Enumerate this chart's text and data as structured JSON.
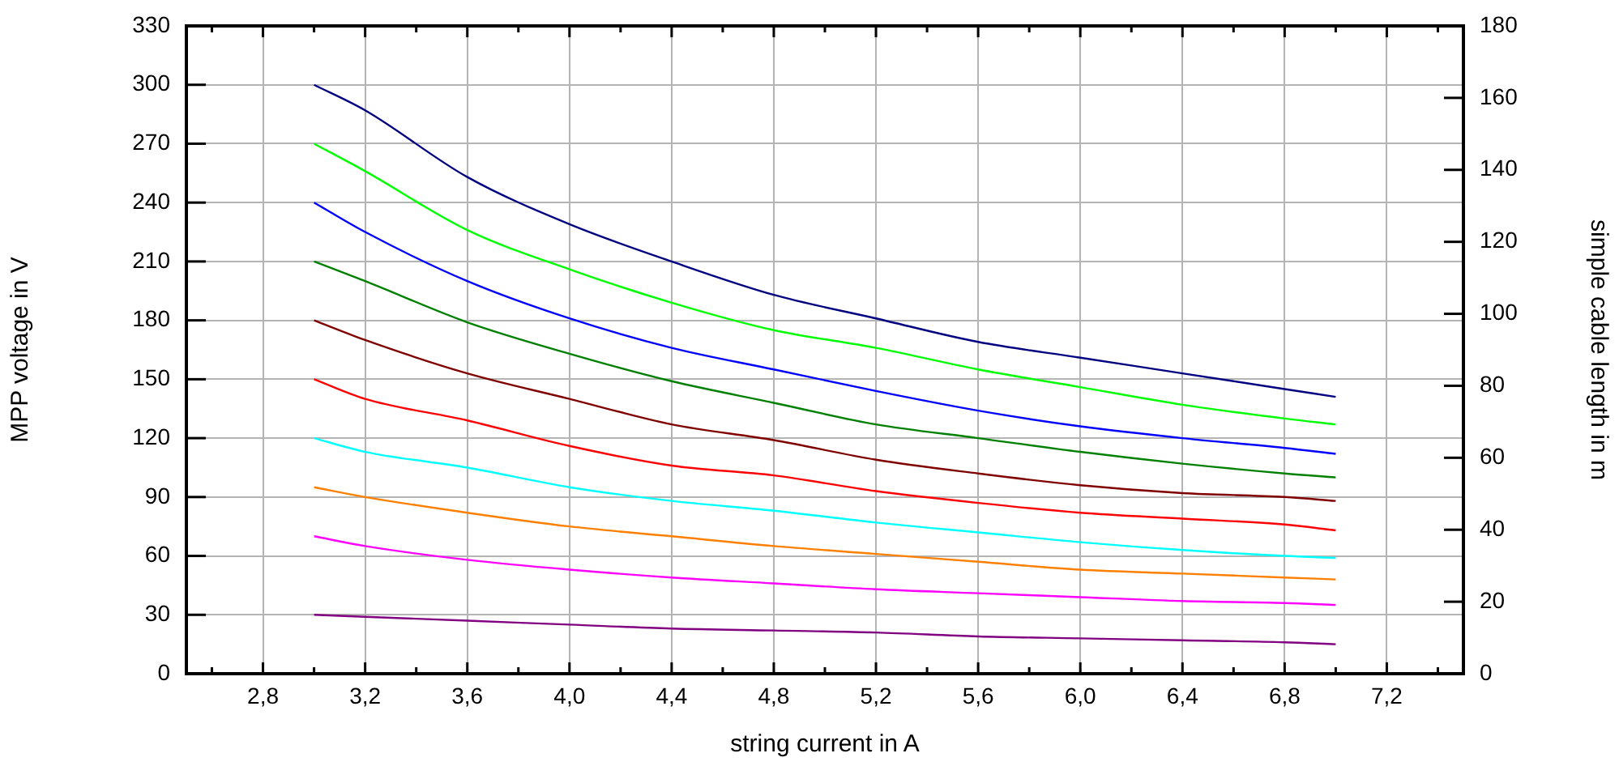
{
  "chart_data": {
    "type": "line",
    "xlabel": "string current in A",
    "ylabel": "MPP voltage in V",
    "y2label": "simple cable length in m",
    "x": [
      3.0,
      3.2,
      3.6,
      4.0,
      4.4,
      4.8,
      5.2,
      5.6,
      6.0,
      6.4,
      6.8,
      7.0
    ],
    "series": [
      {
        "color": "#000080",
        "values": [
          300,
          287,
          253,
          229,
          210,
          193,
          181,
          169,
          161,
          153,
          145,
          141
        ]
      },
      {
        "color": "#00ff00",
        "values": [
          270,
          256,
          226,
          206,
          189,
          175,
          166,
          155,
          146,
          137,
          130,
          127
        ]
      },
      {
        "color": "#0000ff",
        "values": [
          240,
          225,
          200,
          181,
          166,
          155,
          144,
          134,
          126,
          120,
          115,
          112
        ]
      },
      {
        "color": "#008000",
        "values": [
          210,
          200,
          179,
          163,
          149,
          138,
          127,
          120,
          113,
          107,
          102,
          100
        ]
      },
      {
        "color": "#800000",
        "values": [
          180,
          170,
          153,
          140,
          127,
          119,
          109,
          102,
          96,
          92,
          90,
          88
        ]
      },
      {
        "color": "#ff0000",
        "values": [
          150,
          140,
          129,
          116,
          106,
          101,
          93,
          87,
          82,
          79,
          76,
          73
        ]
      },
      {
        "color": "#00ffff",
        "values": [
          120,
          113,
          105,
          95,
          88,
          83,
          77,
          72,
          67,
          63,
          60,
          59
        ]
      },
      {
        "color": "#ff8000",
        "values": [
          95,
          90,
          82,
          75,
          70,
          65,
          61,
          57,
          53,
          51,
          49,
          48
        ]
      },
      {
        "color": "#ff00ff",
        "values": [
          70,
          65,
          58,
          53,
          49,
          46,
          43,
          41,
          39,
          37,
          36,
          35
        ]
      },
      {
        "color": "#800080",
        "values": [
          30,
          29,
          27,
          25,
          23,
          22,
          21,
          19,
          18,
          17,
          16,
          15
        ]
      }
    ],
    "xlim": [
      2.5,
      7.5
    ],
    "xticks": [
      {
        "value": 2.6,
        "label": null
      },
      {
        "value": 2.8,
        "label": "2,8"
      },
      {
        "value": 3.0,
        "label": null
      },
      {
        "value": 3.2,
        "label": "3,2"
      },
      {
        "value": 3.4,
        "label": null
      },
      {
        "value": 3.6,
        "label": "3,6"
      },
      {
        "value": 3.8,
        "label": null
      },
      {
        "value": 4.0,
        "label": "4,0"
      },
      {
        "value": 4.2,
        "label": null
      },
      {
        "value": 4.4,
        "label": "4,4"
      },
      {
        "value": 4.6,
        "label": null
      },
      {
        "value": 4.8,
        "label": "4,8"
      },
      {
        "value": 5.0,
        "label": null
      },
      {
        "value": 5.2,
        "label": "5,2"
      },
      {
        "value": 5.4,
        "label": null
      },
      {
        "value": 5.6,
        "label": "5,6"
      },
      {
        "value": 5.8,
        "label": null
      },
      {
        "value": 6.0,
        "label": "6,0"
      },
      {
        "value": 6.2,
        "label": null
      },
      {
        "value": 6.4,
        "label": "6,4"
      },
      {
        "value": 6.6,
        "label": null
      },
      {
        "value": 6.8,
        "label": "6,8"
      },
      {
        "value": 7.0,
        "label": null
      },
      {
        "value": 7.2,
        "label": "7,2"
      },
      {
        "value": 7.4,
        "label": null
      }
    ],
    "ylim": [
      0,
      330
    ],
    "yticks": [
      0,
      30,
      60,
      90,
      120,
      150,
      180,
      210,
      240,
      270,
      300,
      330
    ],
    "y2lim": [
      0,
      180
    ],
    "y2ticks": [
      0,
      20,
      40,
      60,
      80,
      100,
      120,
      140,
      160,
      180
    ],
    "grid": true,
    "legend": false,
    "marker": "none",
    "line_style": "solid"
  }
}
